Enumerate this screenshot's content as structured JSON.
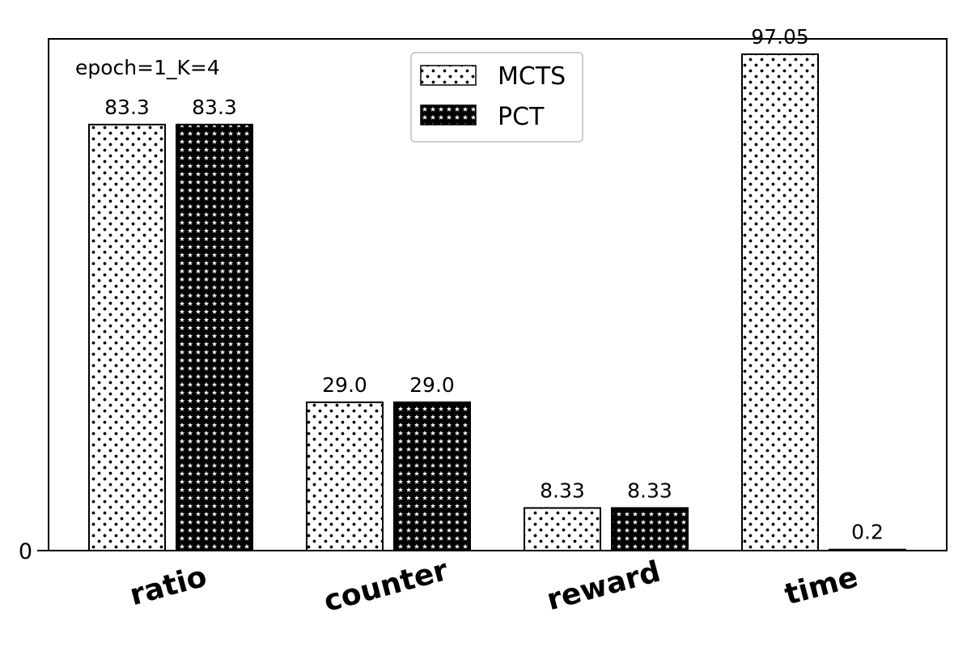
{
  "chart_data": {
    "type": "bar",
    "title": "",
    "xlabel": "",
    "ylabel": "",
    "annotation": "epoch=1_K=4",
    "categories": [
      "ratio",
      "counter",
      "reward",
      "time"
    ],
    "series": [
      {
        "name": "MCTS",
        "values": [
          83.3,
          29.0,
          8.33,
          97.05
        ],
        "labels": [
          "83.3",
          "29.0",
          "8.33",
          "97.05"
        ],
        "pattern": "dots"
      },
      {
        "name": "PCT",
        "values": [
          83.3,
          29.0,
          8.33,
          0.2
        ],
        "labels": [
          "83.3",
          "29.0",
          "8.33",
          "0.2"
        ],
        "pattern": "stars"
      }
    ],
    "yticks": [
      0
    ],
    "ytick_labels": [
      "0"
    ],
    "ylim": [
      0,
      100
    ],
    "grid": false,
    "legend_position": "top-center",
    "colors": {
      "bar_fill": "#ffffff",
      "bar_edge": "#000000",
      "axis": "#000000",
      "legend_border": "#cccccc"
    }
  }
}
